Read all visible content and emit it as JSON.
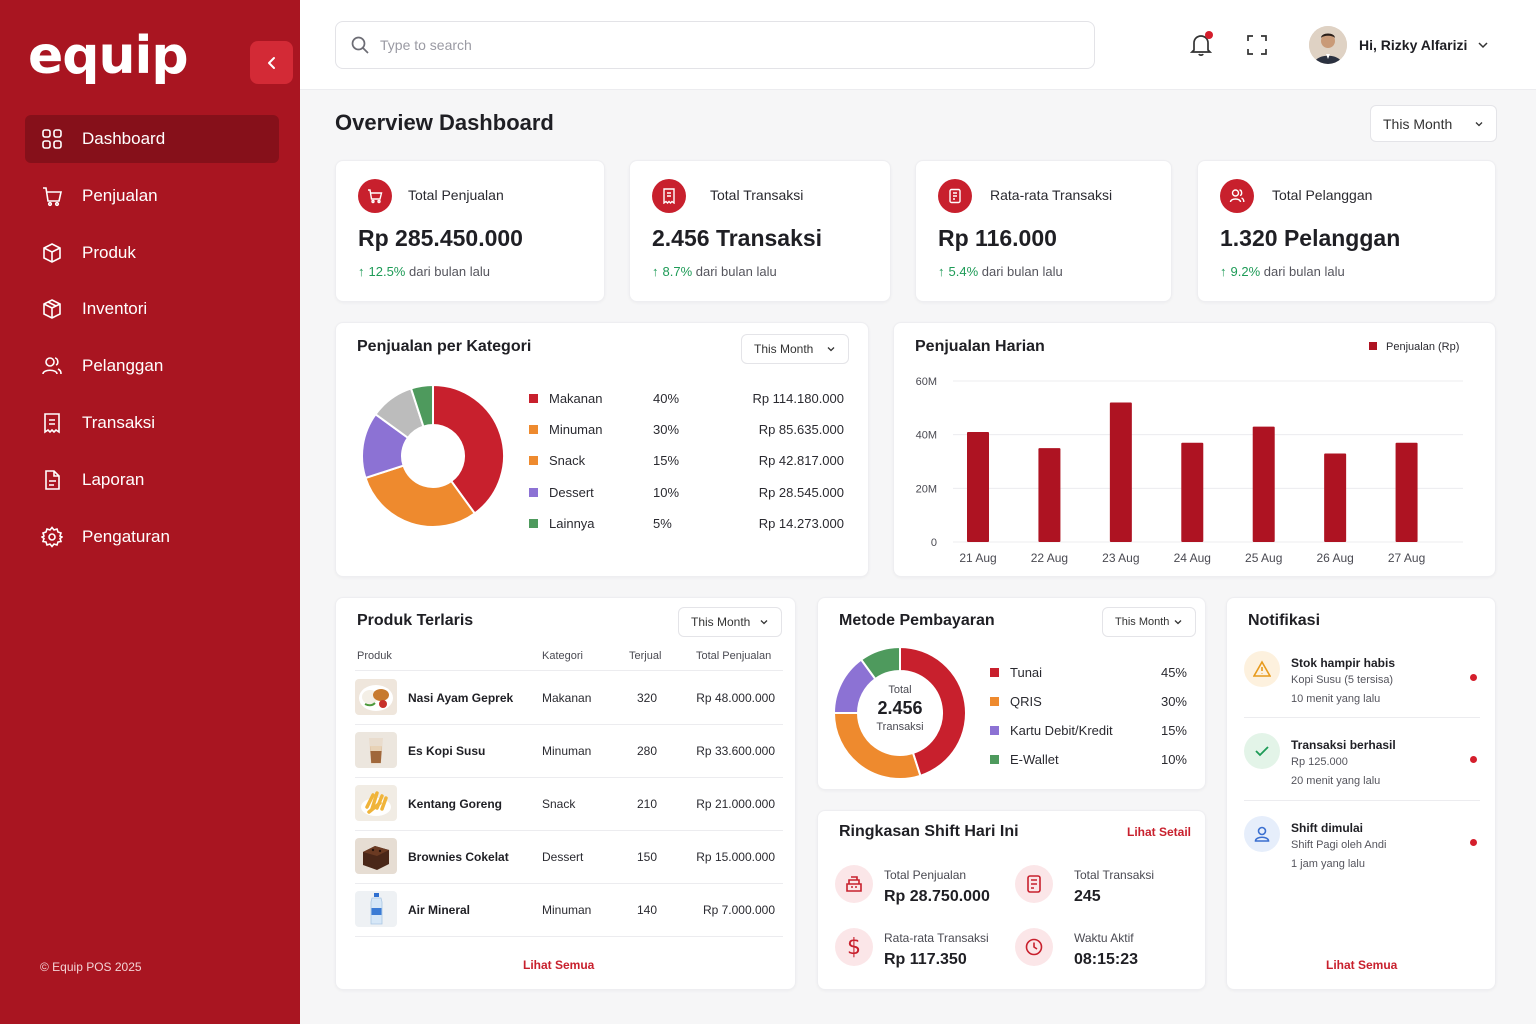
{
  "brand": {
    "logo": "equip",
    "copyright": "© Equip POS 2025",
    "accent": "#a91521"
  },
  "sidebar": {
    "items": [
      {
        "label": "Dashboard",
        "icon": "grid-icon"
      },
      {
        "label": "Penjualan",
        "icon": "shop-icon"
      },
      {
        "label": "Produk",
        "icon": "box-icon"
      },
      {
        "label": "Inventori",
        "icon": "inventory-icon"
      },
      {
        "label": "Pelanggan",
        "icon": "users-icon"
      },
      {
        "label": "Transaksi",
        "icon": "receipt-icon"
      },
      {
        "label": "Laporan",
        "icon": "report-icon"
      },
      {
        "label": "Pengaturan",
        "icon": "gear-icon"
      }
    ]
  },
  "topbar": {
    "search_placeholder": "Type to search",
    "greeting": "Hi, Rizky Alfarizi"
  },
  "page": {
    "title": "Overview Dashboard",
    "period": "This Month"
  },
  "stats": [
    {
      "label": "Total Penjualan",
      "value": "Rp 285.450.000",
      "pct": "12.5%",
      "suffix": "dari bulan lalu"
    },
    {
      "label": "Total Transaksi",
      "value": "2.456 Transaksi",
      "pct": "8.7%",
      "suffix": "dari bulan lalu"
    },
    {
      "label": "Rata-rata Transaksi",
      "value": "Rp 116.000",
      "pct": "5.4%",
      "suffix": "dari bulan lalu"
    },
    {
      "label": "Total Pelanggan",
      "value": "1.320 Pelanggan",
      "pct": "9.2%",
      "suffix": "dari bulan lalu"
    }
  ],
  "category": {
    "title": "Penjualan per Kategori",
    "period": "This Month",
    "items": [
      {
        "name": "Makanan",
        "pct": "40%",
        "value": "Rp 114.180.000"
      },
      {
        "name": "Minuman",
        "pct": "30%",
        "value": "Rp 85.635.000"
      },
      {
        "name": "Snack",
        "pct": "15%",
        "value": "Rp 42.817.000"
      },
      {
        "name": "Dessert",
        "pct": "10%",
        "value": "Rp 28.545.000"
      },
      {
        "name": "Lainnya",
        "pct": "5%",
        "value": "Rp 14.273.000"
      }
    ]
  },
  "daily": {
    "title": "Penjualan Harian"
  },
  "products": {
    "title": "Produk Terlaris",
    "period": "This Month",
    "headers": {
      "product": "Produk",
      "category": "Kategori",
      "sold": "Terjual",
      "total": "Total Penjualan"
    },
    "rows": [
      {
        "name": "Nasi Ayam Geprek",
        "category": "Makanan",
        "sold": "320",
        "total": "Rp 48.000.000"
      },
      {
        "name": "Es Kopi Susu",
        "category": "Minuman",
        "sold": "280",
        "total": "Rp 33.600.000"
      },
      {
        "name": "Kentang Goreng",
        "category": "Snack",
        "sold": "210",
        "total": "Rp 21.000.000"
      },
      {
        "name": "Brownies Cokelat",
        "category": "Dessert",
        "sold": "150",
        "total": "Rp 15.000.000"
      },
      {
        "name": "Air Mineral",
        "category": "Minuman",
        "sold": "140",
        "total": "Rp 7.000.000"
      }
    ],
    "view_all": "Lihat Semua"
  },
  "payment": {
    "title": "Metode Pembayaran",
    "period": "This Month",
    "center_label": "Total",
    "center_value": "2.456",
    "center_sub": "Transaksi",
    "items": [
      {
        "name": "Tunai",
        "pct": "45%"
      },
      {
        "name": "QRIS",
        "pct": "30%"
      },
      {
        "name": "Kartu Debit/Kredit",
        "pct": "15%"
      },
      {
        "name": "E-Wallet",
        "pct": "10%"
      }
    ]
  },
  "shift": {
    "title": "Ringkasan Shift Hari Ini",
    "link": "Lihat Setail",
    "total_sales_label": "Total Penjualan",
    "total_sales": "Rp 28.750.000",
    "total_tx_label": "Total Transaksi",
    "total_tx": "245",
    "avg_label": "Rata-rata Transaksi",
    "avg": "Rp 117.350",
    "active_label": "Waktu Aktif",
    "active": "08:15:23"
  },
  "notifications": {
    "title": "Notifikasi",
    "items": [
      {
        "title": "Stok hampir habis",
        "desc": "Kopi Susu (5 tersisa)",
        "time": "10 menit yang lalu"
      },
      {
        "title": "Transaksi berhasil",
        "desc": "Rp 125.000",
        "time": "20 menit yang lalu"
      },
      {
        "title": "Shift dimulai",
        "desc": "Shift Pagi oleh Andi",
        "time": "1 jam yang lalu"
      }
    ],
    "view_all": "Lihat Semua"
  },
  "chart_data": [
    {
      "type": "pie",
      "title": "Penjualan per Kategori",
      "categories": [
        "Makanan",
        "Minuman",
        "Snack",
        "Dessert",
        "Lainnya"
      ],
      "values": [
        40,
        30,
        15,
        10,
        5
      ],
      "colors": [
        "#c8202d",
        "#ee8a2e",
        "#8c72d4",
        "#bcbcbc",
        "#4e9a5d"
      ]
    },
    {
      "type": "bar",
      "title": "Penjualan Harian",
      "categories": [
        "21 Aug",
        "22 Aug",
        "23 Aug",
        "24 Aug",
        "25 Aug",
        "26 Aug",
        "27 Aug"
      ],
      "series": [
        {
          "name": "Penjualan (Rp)",
          "values": [
            41000000,
            35000000,
            52000000,
            37000000,
            43000000,
            33000000,
            37000000
          ]
        }
      ],
      "yticks": [
        "0",
        "20M",
        "40M",
        "60M"
      ],
      "ylim": [
        0,
        60000000
      ],
      "color": "#ae1322",
      "legend": "top-right"
    },
    {
      "type": "pie",
      "title": "Metode Pembayaran",
      "categories": [
        "Tunai",
        "QRIS",
        "Kartu Debit/Kredit",
        "E-Wallet"
      ],
      "values": [
        45,
        30,
        15,
        10
      ],
      "colors": [
        "#c8202d",
        "#ee8a2e",
        "#8c72d4",
        "#4e9a5d"
      ]
    }
  ]
}
